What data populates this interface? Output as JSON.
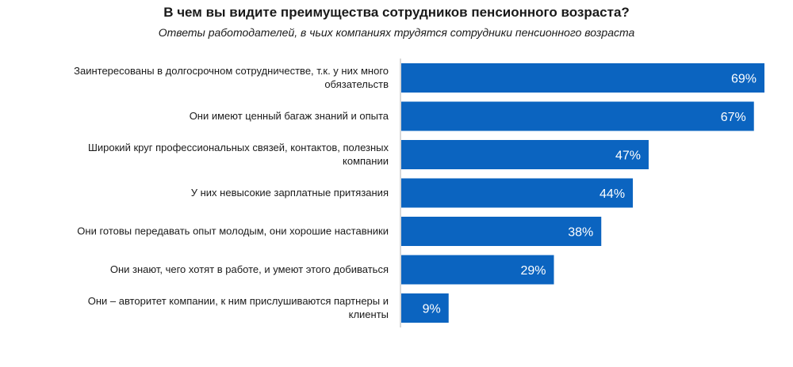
{
  "title": "В чем вы видите преимущества сотрудников пенсионного возраста?",
  "subtitle": "Ответы работодателей, в чьих компаниях трудятся сотрудники пенсионного возраста",
  "colors": {
    "bar": "#0b64c0",
    "axis": "#b0b0b0"
  },
  "chart_data": {
    "type": "bar",
    "orientation": "horizontal",
    "categories": [
      [
        "Заинтересованы в долгосрочном сотрудничестве, т.к. у них много",
        "обязательств"
      ],
      [
        "Они имеют ценный багаж знаний и опыта"
      ],
      [
        "Широкий круг профессиональных связей, контактов, полезных",
        "компании"
      ],
      [
        "У них невысокие зарплатные притязания"
      ],
      [
        "Они готовы передавать опыт молодым, они хорошие наставники"
      ],
      [
        "Они знают, чего хотят в работе, и умеют этого добиваться"
      ],
      [
        "Они – авторитет компании, к ним прислушиваются партнеры и",
        "клиенты"
      ]
    ],
    "values": [
      69,
      67,
      47,
      44,
      38,
      29,
      9
    ],
    "value_labels": [
      "69%",
      "67%",
      "47%",
      "44%",
      "38%",
      "29%",
      "9%"
    ],
    "unit": "%",
    "xlim": [
      0,
      69
    ],
    "grid": false,
    "legend": "none"
  }
}
